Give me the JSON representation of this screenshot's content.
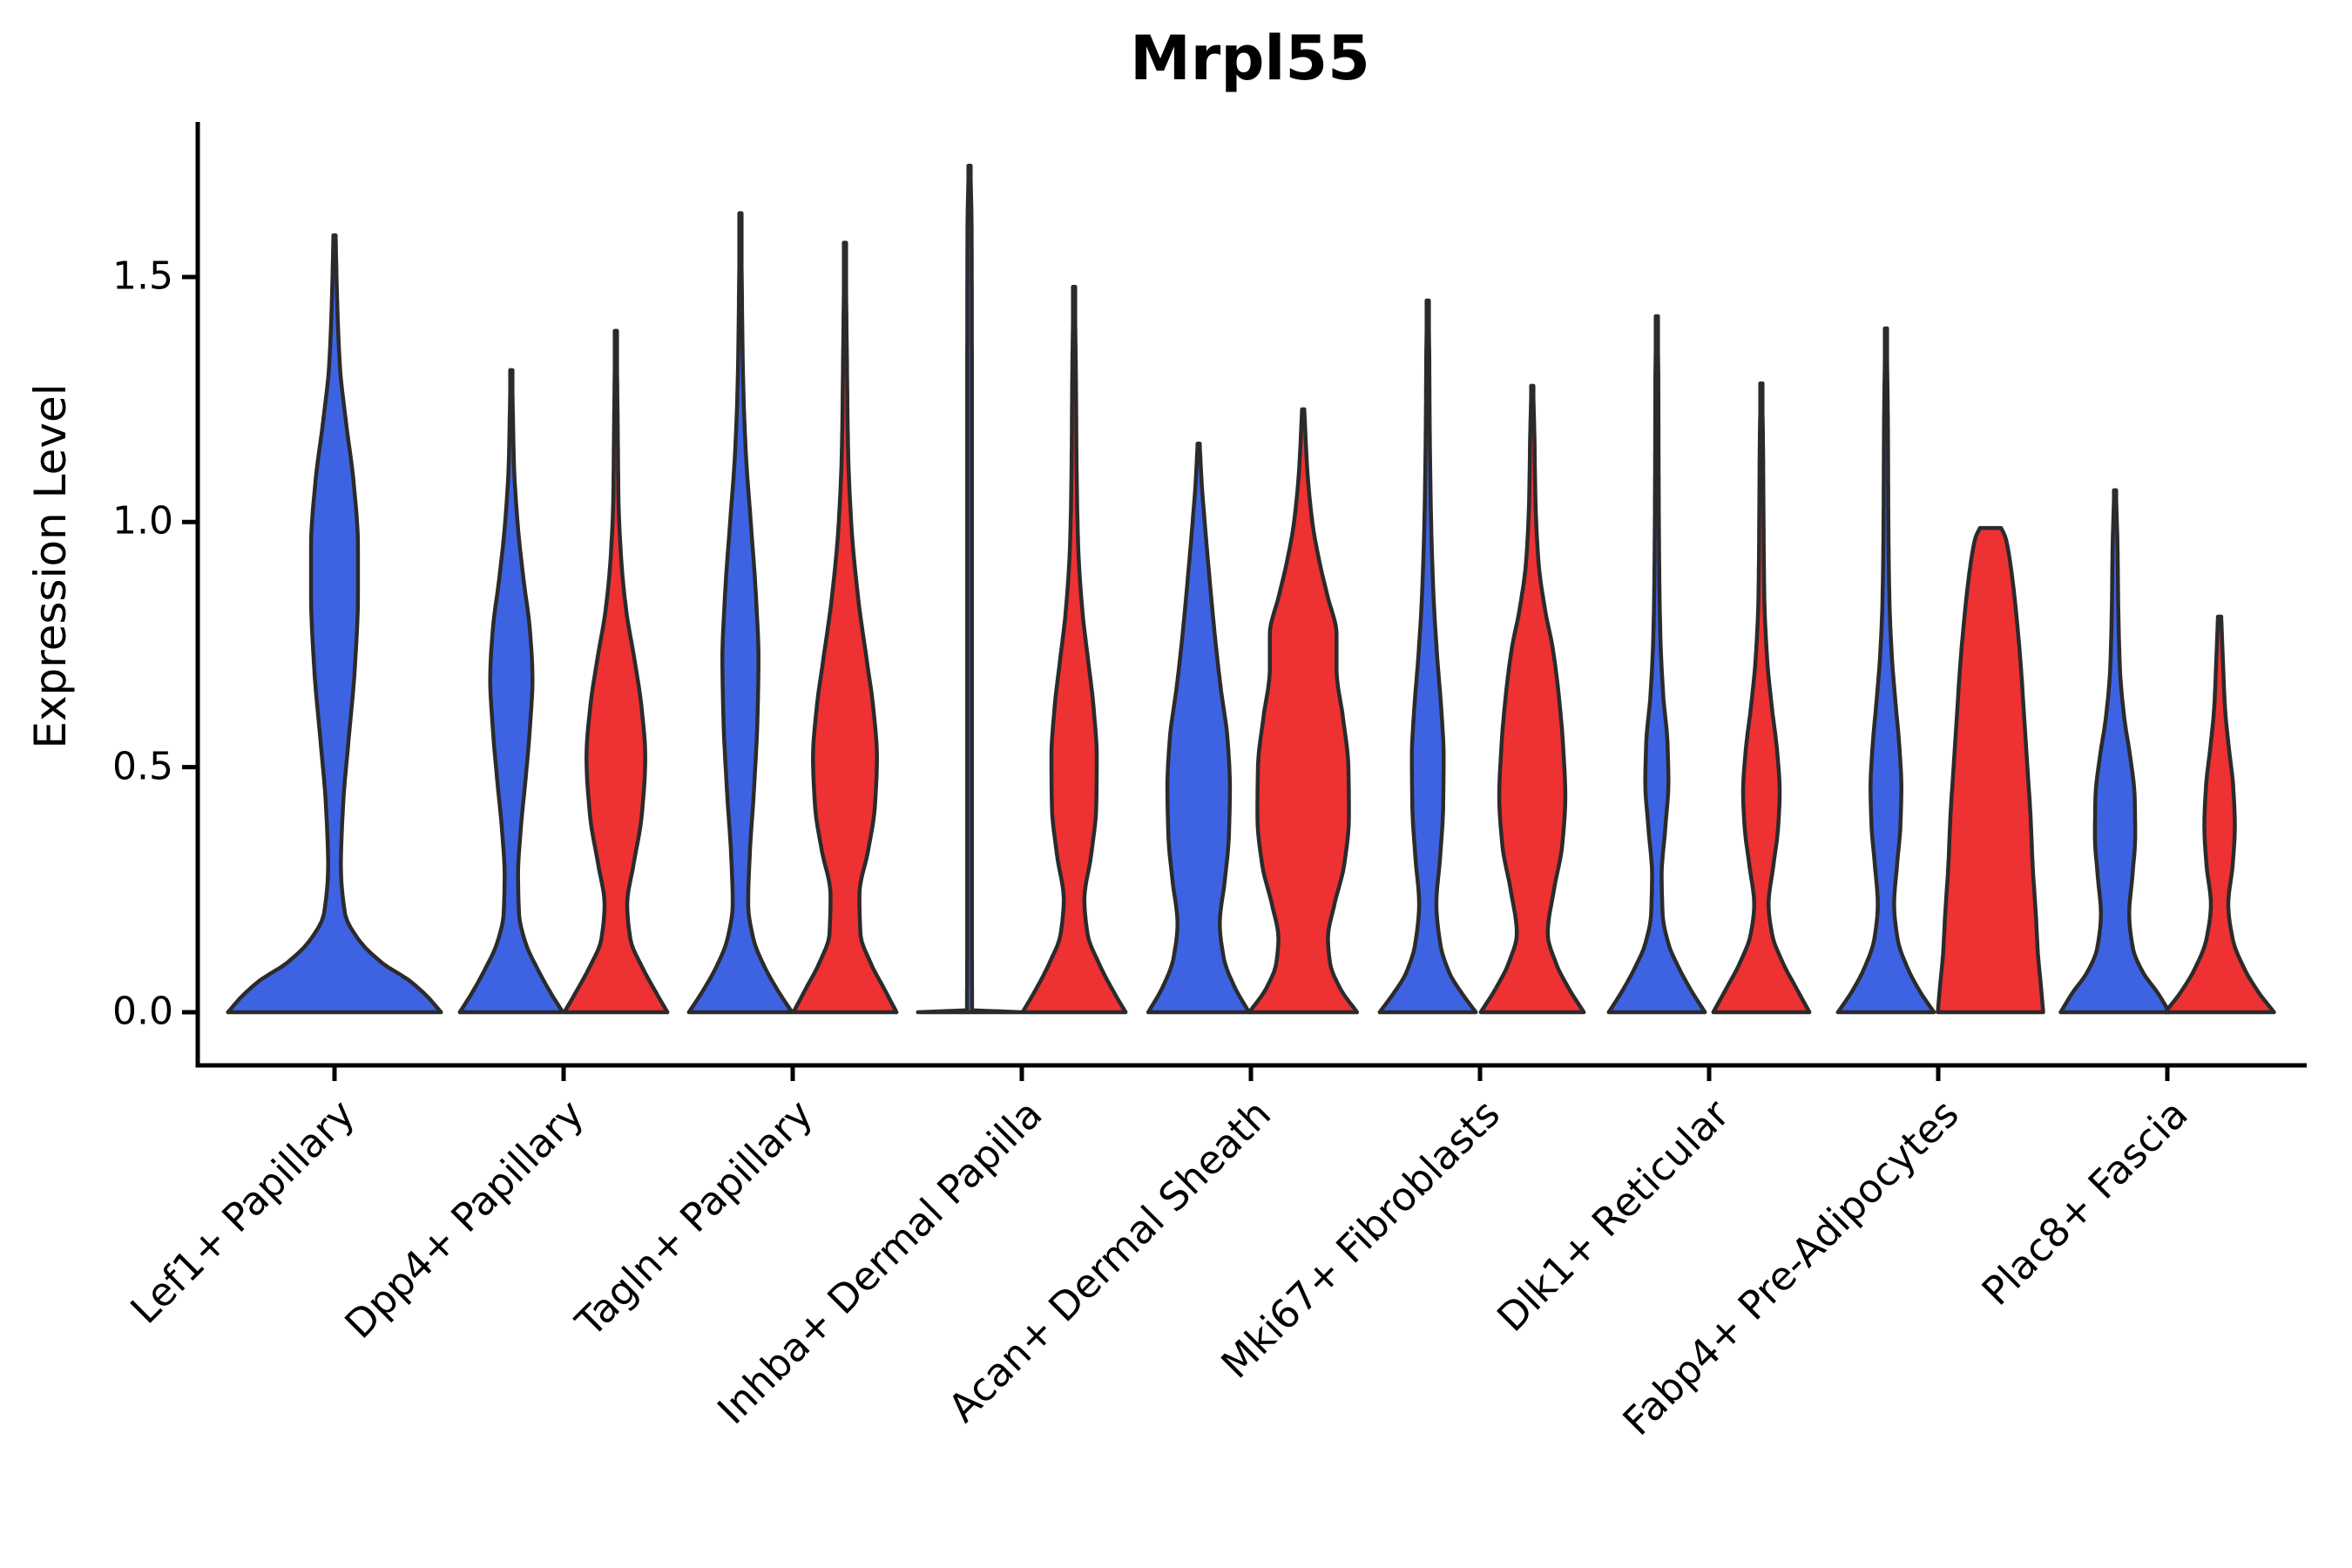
{
  "chart_data": {
    "type": "violin",
    "title": "Mrpl55",
    "ylabel": "Expression Level",
    "xlabel": "",
    "ylim": [
      -0.11,
      1.82
    ],
    "yticks": [
      0.0,
      0.5,
      1.0,
      1.5
    ],
    "grid": false,
    "legend": "none",
    "colors": {
      "blue": "#3E63E2",
      "red": "#EE3132",
      "outline": "#2B2B2B",
      "axis": "#000000"
    },
    "categories": [
      "Lef1+ Papillary",
      "Dpp4+ Papillary",
      "Tagln+ Papillary",
      "Inhba+ Dermal Papilla",
      "Acan+ Dermal Sheath",
      "Mki67+ Fibroblasts",
      "Dlk1+ Reticular",
      "Fabp4+ Pre-Adipocytes",
      "Plac8+ Fascia"
    ],
    "violins": [
      {
        "category_index": 0,
        "split": "blue",
        "pos": "center",
        "max_expression": 1.59,
        "rel_width": 0.93,
        "profile": [
          [
            0,
            1.0
          ],
          [
            0.03,
            0.88
          ],
          [
            0.065,
            0.7
          ],
          [
            0.1,
            0.45
          ],
          [
            0.15,
            0.22
          ],
          [
            0.2,
            0.1
          ],
          [
            0.3,
            0.06
          ],
          [
            0.42,
            0.08
          ],
          [
            0.55,
            0.13
          ],
          [
            0.7,
            0.19
          ],
          [
            0.85,
            0.22
          ],
          [
            0.95,
            0.22
          ],
          [
            1.08,
            0.18
          ],
          [
            1.2,
            0.11
          ],
          [
            1.32,
            0.05
          ],
          [
            1.45,
            0.025
          ],
          [
            1.585,
            0.01
          ]
        ]
      },
      {
        "category_index": 1,
        "split": "blue",
        "pos": "left",
        "max_expression": 1.31,
        "rel_width": 0.45,
        "profile": [
          [
            0,
            1.0
          ],
          [
            0.04,
            0.76
          ],
          [
            0.09,
            0.5
          ],
          [
            0.14,
            0.28
          ],
          [
            0.2,
            0.15
          ],
          [
            0.28,
            0.13
          ],
          [
            0.37,
            0.18
          ],
          [
            0.48,
            0.28
          ],
          [
            0.58,
            0.36
          ],
          [
            0.68,
            0.41
          ],
          [
            0.78,
            0.36
          ],
          [
            0.88,
            0.24
          ],
          [
            1.0,
            0.12
          ],
          [
            1.12,
            0.05
          ],
          [
            1.22,
            0.03
          ],
          [
            1.31,
            0.012
          ]
        ]
      },
      {
        "category_index": 1,
        "split": "red",
        "pos": "right",
        "max_expression": 1.39,
        "rel_width": 0.45,
        "profile": [
          [
            0,
            1.0
          ],
          [
            0.04,
            0.78
          ],
          [
            0.09,
            0.52
          ],
          [
            0.15,
            0.28
          ],
          [
            0.22,
            0.22
          ],
          [
            0.3,
            0.34
          ],
          [
            0.4,
            0.5
          ],
          [
            0.52,
            0.57
          ],
          [
            0.62,
            0.5
          ],
          [
            0.72,
            0.36
          ],
          [
            0.82,
            0.2
          ],
          [
            0.93,
            0.1
          ],
          [
            1.05,
            0.05
          ],
          [
            1.2,
            0.035
          ],
          [
            1.39,
            0.012
          ]
        ]
      },
      {
        "category_index": 2,
        "split": "blue",
        "pos": "left",
        "max_expression": 1.63,
        "rel_width": 0.45,
        "profile": [
          [
            0,
            1.0
          ],
          [
            0.04,
            0.75
          ],
          [
            0.09,
            0.48
          ],
          [
            0.15,
            0.25
          ],
          [
            0.22,
            0.15
          ],
          [
            0.32,
            0.18
          ],
          [
            0.45,
            0.26
          ],
          [
            0.6,
            0.33
          ],
          [
            0.72,
            0.35
          ],
          [
            0.85,
            0.3
          ],
          [
            1.0,
            0.2
          ],
          [
            1.15,
            0.1
          ],
          [
            1.3,
            0.05
          ],
          [
            1.45,
            0.03
          ],
          [
            1.63,
            0.012
          ]
        ]
      },
      {
        "category_index": 2,
        "split": "red",
        "pos": "right",
        "max_expression": 1.57,
        "rel_width": 0.45,
        "profile": [
          [
            0,
            1.0
          ],
          [
            0.05,
            0.75
          ],
          [
            0.1,
            0.5
          ],
          [
            0.16,
            0.3
          ],
          [
            0.24,
            0.28
          ],
          [
            0.33,
            0.45
          ],
          [
            0.42,
            0.58
          ],
          [
            0.52,
            0.62
          ],
          [
            0.62,
            0.55
          ],
          [
            0.72,
            0.42
          ],
          [
            0.85,
            0.25
          ],
          [
            1.0,
            0.12
          ],
          [
            1.15,
            0.06
          ],
          [
            1.35,
            0.035
          ],
          [
            1.57,
            0.012
          ]
        ]
      },
      {
        "category_index": 3,
        "split": "blue",
        "pos": "left",
        "max_expression": 1.73,
        "rel_width": 0.45,
        "profile": [
          [
            0,
            1.0
          ],
          [
            0.004,
            0.05
          ],
          [
            0.3,
            0.045
          ],
          [
            0.8,
            0.045
          ],
          [
            1.3,
            0.045
          ],
          [
            1.6,
            0.04
          ],
          [
            1.727,
            0.015
          ]
        ]
      },
      {
        "category_index": 3,
        "split": "red",
        "pos": "right",
        "max_expression": 1.48,
        "rel_width": 0.45,
        "profile": [
          [
            0,
            1.0
          ],
          [
            0.045,
            0.75
          ],
          [
            0.1,
            0.48
          ],
          [
            0.16,
            0.26
          ],
          [
            0.23,
            0.2
          ],
          [
            0.32,
            0.33
          ],
          [
            0.42,
            0.43
          ],
          [
            0.52,
            0.44
          ],
          [
            0.62,
            0.38
          ],
          [
            0.72,
            0.27
          ],
          [
            0.82,
            0.16
          ],
          [
            0.95,
            0.08
          ],
          [
            1.1,
            0.05
          ],
          [
            1.3,
            0.035
          ],
          [
            1.48,
            0.012
          ]
        ]
      },
      {
        "category_index": 4,
        "split": "blue",
        "pos": "left",
        "max_expression": 1.16,
        "rel_width": 0.44,
        "profile": [
          [
            0,
            1.0
          ],
          [
            0.05,
            0.72
          ],
          [
            0.11,
            0.5
          ],
          [
            0.18,
            0.42
          ],
          [
            0.27,
            0.52
          ],
          [
            0.36,
            0.6
          ],
          [
            0.46,
            0.62
          ],
          [
            0.56,
            0.57
          ],
          [
            0.66,
            0.44
          ],
          [
            0.76,
            0.33
          ],
          [
            0.88,
            0.22
          ],
          [
            1.0,
            0.12
          ],
          [
            1.08,
            0.06
          ],
          [
            1.16,
            0.02
          ]
        ]
      },
      {
        "category_index": 4,
        "split": "red",
        "pos": "right",
        "max_expression": 1.23,
        "rel_width": 0.47,
        "profile": [
          [
            0,
            1.0
          ],
          [
            0.05,
            0.68
          ],
          [
            0.1,
            0.5
          ],
          [
            0.15,
            0.46
          ],
          [
            0.22,
            0.58
          ],
          [
            0.3,
            0.76
          ],
          [
            0.4,
            0.85
          ],
          [
            0.5,
            0.84
          ],
          [
            0.6,
            0.74
          ],
          [
            0.7,
            0.62
          ],
          [
            0.77,
            0.62
          ],
          [
            0.85,
            0.45
          ],
          [
            0.92,
            0.3
          ],
          [
            1.0,
            0.17
          ],
          [
            1.1,
            0.08
          ],
          [
            1.23,
            0.02
          ]
        ]
      },
      {
        "category_index": 5,
        "split": "blue",
        "pos": "left",
        "max_expression": 1.45,
        "rel_width": 0.42,
        "profile": [
          [
            0,
            1.0
          ],
          [
            0.04,
            0.7
          ],
          [
            0.08,
            0.45
          ],
          [
            0.14,
            0.26
          ],
          [
            0.22,
            0.18
          ],
          [
            0.32,
            0.26
          ],
          [
            0.42,
            0.32
          ],
          [
            0.52,
            0.33
          ],
          [
            0.62,
            0.28
          ],
          [
            0.72,
            0.2
          ],
          [
            0.85,
            0.12
          ],
          [
            1.0,
            0.07
          ],
          [
            1.2,
            0.04
          ],
          [
            1.35,
            0.03
          ],
          [
            1.452,
            0.012
          ]
        ]
      },
      {
        "category_index": 5,
        "split": "red",
        "pos": "right",
        "max_expression": 1.28,
        "rel_width": 0.45,
        "profile": [
          [
            0,
            1.0
          ],
          [
            0.05,
            0.7
          ],
          [
            0.1,
            0.46
          ],
          [
            0.16,
            0.3
          ],
          [
            0.25,
            0.42
          ],
          [
            0.34,
            0.58
          ],
          [
            0.44,
            0.64
          ],
          [
            0.54,
            0.6
          ],
          [
            0.64,
            0.52
          ],
          [
            0.74,
            0.4
          ],
          [
            0.82,
            0.25
          ],
          [
            0.92,
            0.12
          ],
          [
            1.05,
            0.06
          ],
          [
            1.18,
            0.04
          ],
          [
            1.278,
            0.015
          ]
        ]
      },
      {
        "category_index": 6,
        "split": "blue",
        "pos": "left",
        "max_expression": 1.42,
        "rel_width": 0.42,
        "profile": [
          [
            0,
            1.0
          ],
          [
            0.04,
            0.74
          ],
          [
            0.09,
            0.46
          ],
          [
            0.14,
            0.24
          ],
          [
            0.2,
            0.12
          ],
          [
            0.28,
            0.1
          ],
          [
            0.37,
            0.17
          ],
          [
            0.47,
            0.24
          ],
          [
            0.55,
            0.22
          ],
          [
            0.65,
            0.13
          ],
          [
            0.78,
            0.07
          ],
          [
            0.95,
            0.045
          ],
          [
            1.15,
            0.035
          ],
          [
            1.3,
            0.03
          ],
          [
            1.42,
            0.012
          ]
        ]
      },
      {
        "category_index": 6,
        "split": "red",
        "pos": "right",
        "max_expression": 1.28,
        "rel_width": 0.42,
        "profile": [
          [
            0,
            1.0
          ],
          [
            0.05,
            0.72
          ],
          [
            0.1,
            0.45
          ],
          [
            0.16,
            0.22
          ],
          [
            0.22,
            0.15
          ],
          [
            0.3,
            0.25
          ],
          [
            0.38,
            0.35
          ],
          [
            0.45,
            0.38
          ],
          [
            0.53,
            0.33
          ],
          [
            0.62,
            0.22
          ],
          [
            0.72,
            0.12
          ],
          [
            0.85,
            0.06
          ],
          [
            1.0,
            0.045
          ],
          [
            1.15,
            0.035
          ],
          [
            1.283,
            0.012
          ]
        ]
      },
      {
        "category_index": 7,
        "split": "blue",
        "pos": "left",
        "max_expression": 1.4,
        "rel_width": 0.42,
        "profile": [
          [
            0,
            1.0
          ],
          [
            0.04,
            0.72
          ],
          [
            0.09,
            0.45
          ],
          [
            0.15,
            0.24
          ],
          [
            0.22,
            0.17
          ],
          [
            0.3,
            0.23
          ],
          [
            0.38,
            0.3
          ],
          [
            0.46,
            0.32
          ],
          [
            0.54,
            0.28
          ],
          [
            0.63,
            0.2
          ],
          [
            0.73,
            0.12
          ],
          [
            0.85,
            0.07
          ],
          [
            1.0,
            0.05
          ],
          [
            1.2,
            0.04
          ],
          [
            1.395,
            0.012
          ]
        ]
      },
      {
        "category_index": 7,
        "split": "red",
        "pos": "right",
        "max_expression": 0.99,
        "rel_width": 0.46,
        "profile": [
          [
            0,
            1.0
          ],
          [
            0.05,
            0.96
          ],
          [
            0.12,
            0.9
          ],
          [
            0.2,
            0.86
          ],
          [
            0.3,
            0.8
          ],
          [
            0.4,
            0.76
          ],
          [
            0.5,
            0.7
          ],
          [
            0.6,
            0.64
          ],
          [
            0.7,
            0.58
          ],
          [
            0.8,
            0.5
          ],
          [
            0.88,
            0.42
          ],
          [
            0.94,
            0.34
          ],
          [
            0.97,
            0.28
          ],
          [
            0.988,
            0.2
          ]
        ]
      },
      {
        "category_index": 8,
        "split": "blue",
        "pos": "left",
        "max_expression": 1.06,
        "rel_width": 0.475,
        "profile": [
          [
            0,
            1.0
          ],
          [
            0.04,
            0.78
          ],
          [
            0.08,
            0.52
          ],
          [
            0.13,
            0.33
          ],
          [
            0.2,
            0.26
          ],
          [
            0.28,
            0.32
          ],
          [
            0.36,
            0.37
          ],
          [
            0.44,
            0.36
          ],
          [
            0.52,
            0.28
          ],
          [
            0.6,
            0.17
          ],
          [
            0.7,
            0.09
          ],
          [
            0.82,
            0.06
          ],
          [
            0.95,
            0.045
          ],
          [
            1.065,
            0.015
          ]
        ]
      },
      {
        "category_index": 8,
        "split": "red",
        "pos": "right",
        "max_expression": 0.81,
        "rel_width": 0.475,
        "profile": [
          [
            0,
            1.0
          ],
          [
            0.04,
            0.72
          ],
          [
            0.09,
            0.45
          ],
          [
            0.15,
            0.24
          ],
          [
            0.22,
            0.16
          ],
          [
            0.3,
            0.24
          ],
          [
            0.38,
            0.28
          ],
          [
            0.46,
            0.25
          ],
          [
            0.54,
            0.17
          ],
          [
            0.62,
            0.1
          ],
          [
            0.72,
            0.06
          ],
          [
            0.807,
            0.03
          ]
        ]
      }
    ]
  }
}
